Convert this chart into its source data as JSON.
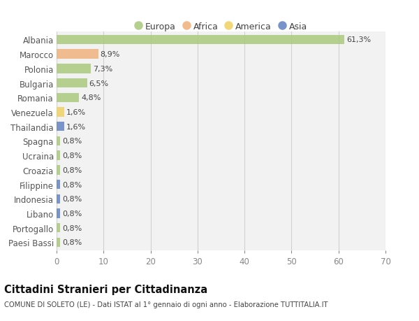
{
  "categories": [
    "Albania",
    "Marocco",
    "Polonia",
    "Bulgaria",
    "Romania",
    "Venezuela",
    "Thailandia",
    "Spagna",
    "Ucraina",
    "Croazia",
    "Filippine",
    "Indonesia",
    "Libano",
    "Portogallo",
    "Paesi Bassi"
  ],
  "values": [
    61.3,
    8.9,
    7.3,
    6.5,
    4.8,
    1.6,
    1.6,
    0.8,
    0.8,
    0.8,
    0.8,
    0.8,
    0.8,
    0.8,
    0.8
  ],
  "labels": [
    "61,3%",
    "8,9%",
    "7,3%",
    "6,5%",
    "4,8%",
    "1,6%",
    "1,6%",
    "0,8%",
    "0,8%",
    "0,8%",
    "0,8%",
    "0,8%",
    "0,8%",
    "0,8%",
    "0,8%"
  ],
  "colors": [
    "#a8c87a",
    "#f0b07a",
    "#a8c87a",
    "#a8c87a",
    "#a8c87a",
    "#f0d060",
    "#6080c0",
    "#a8c87a",
    "#a8c87a",
    "#a8c87a",
    "#6080c0",
    "#6080c0",
    "#6080c0",
    "#a8c87a",
    "#a8c87a"
  ],
  "continent_colors": {
    "Europa": "#a8c87a",
    "Africa": "#f0b07a",
    "America": "#f0d060",
    "Asia": "#6080c0"
  },
  "xlim": [
    0,
    70
  ],
  "xticks": [
    0,
    10,
    20,
    30,
    40,
    50,
    60,
    70
  ],
  "grid_color": "#d0d0d0",
  "bar_height": 0.65,
  "bg_color": "#f2f2f2",
  "title": "Cittadini Stranieri per Cittadinanza",
  "subtitle": "COMUNE DI SOLETO (LE) - Dati ISTAT al 1° gennaio di ogni anno - Elaborazione TUTTITALIA.IT",
  "label_fontsize": 8,
  "tick_fontsize": 8.5,
  "legend_fontsize": 9
}
